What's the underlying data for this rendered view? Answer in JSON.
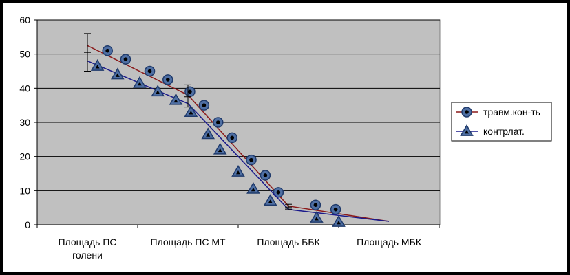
{
  "chart_data": {
    "type": "line",
    "ylim": [
      0,
      60
    ],
    "yticks": [
      0,
      10,
      20,
      30,
      40,
      50,
      60
    ],
    "categories": [
      "Площадь ПС голени",
      "Площадь ПС МТ",
      "Площадь ББК",
      "Площадь МБК"
    ],
    "grid": true,
    "legend_position": "right",
    "plot_background": "#c0c0c0",
    "series": [
      {
        "name": "травм.кон-ть",
        "color": "#8b1a1a",
        "marker": "circle",
        "trend_x": [
          0,
          1,
          2,
          3
        ],
        "trend_y": [
          52.5,
          38,
          5.5,
          1
        ],
        "markers_x": [
          0.2,
          0.38,
          0.62,
          0.8,
          1.02,
          1.16,
          1.3,
          1.44,
          1.63,
          1.77,
          1.9,
          2.27,
          2.47
        ],
        "markers_y": [
          51,
          48.5,
          45,
          42.5,
          39,
          35,
          30,
          25.5,
          19,
          14.5,
          9.5,
          5.8,
          4.5
        ]
      },
      {
        "name": "контрлат.",
        "color": "#1a1a8b",
        "marker": "triangle",
        "trend_x": [
          0,
          1,
          2,
          3
        ],
        "trend_y": [
          48,
          35.5,
          4.5,
          1
        ],
        "markers_x": [
          0.1,
          0.3,
          0.52,
          0.7,
          0.88,
          1.03,
          1.2,
          1.32,
          1.5,
          1.65,
          1.82,
          2.28,
          2.5
        ],
        "markers_y": [
          46.5,
          44,
          41.5,
          39,
          36.5,
          33,
          26.5,
          22,
          15.5,
          10.5,
          7,
          2,
          0.8
        ]
      }
    ],
    "error_bars": [
      {
        "x": 0,
        "y": 50.5,
        "low": 45,
        "high": 56
      },
      {
        "x": 1,
        "y": 37.5,
        "low": 34.5,
        "high": 41
      },
      {
        "x": 2,
        "y": 5.2,
        "low": 4.6,
        "high": 6
      }
    ]
  }
}
